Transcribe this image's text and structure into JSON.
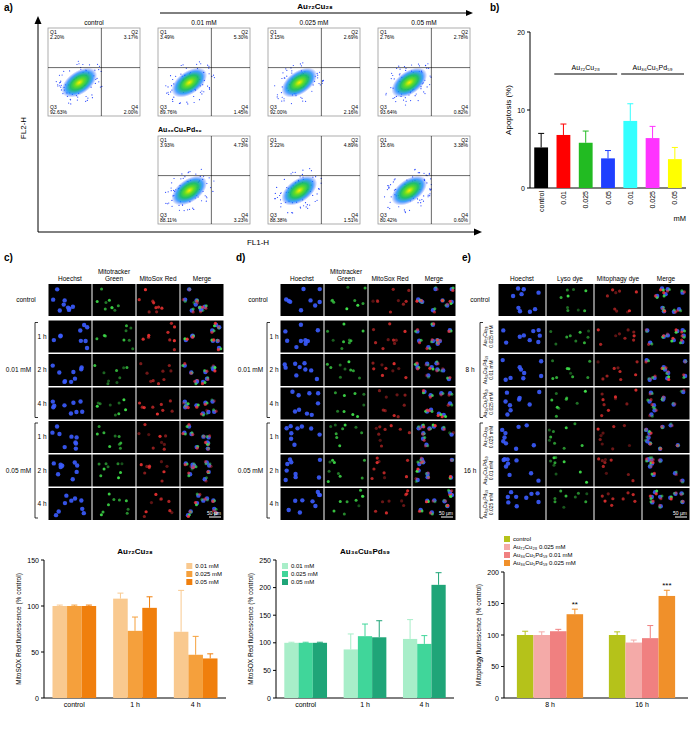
{
  "flow_cytometry": {
    "panel_label": "a)",
    "x_label": "FL1-H",
    "y_label": "FL2-H",
    "top_label": "Au₇₂Cu₂₈",
    "bottom_label": "Au₃₆Cu₅Pd₅₉",
    "column_titles": [
      "control",
      "0.01 mM",
      "0.025 mM",
      "0.05 mM"
    ],
    "top_row": [
      {
        "quadrants": [
          {
            "name": "Q1",
            "value": "2.20%"
          },
          {
            "name": "Q2",
            "value": "3.17%"
          },
          {
            "name": "Q3",
            "value": "92.63%"
          },
          {
            "name": "Q4",
            "value": "2.00%"
          }
        ]
      },
      {
        "quadrants": [
          {
            "name": "Q1",
            "value": "3.49%"
          },
          {
            "name": "Q2",
            "value": "5.30%"
          },
          {
            "name": "Q3",
            "value": "89.76%"
          },
          {
            "name": "Q4",
            "value": "1.45%"
          }
        ]
      },
      {
        "quadrants": [
          {
            "name": "Q1",
            "value": "3.15%"
          },
          {
            "name": "Q2",
            "value": "2.69%"
          },
          {
            "name": "Q3",
            "value": "92.00%"
          },
          {
            "name": "Q4",
            "value": "2.16%"
          }
        ]
      },
      {
        "quadrants": [
          {
            "name": "Q1",
            "value": "2.76%"
          },
          {
            "name": "Q2",
            "value": "2.78%"
          },
          {
            "name": "Q3",
            "value": "93.64%"
          },
          {
            "name": "Q4",
            "value": "0.82%"
          }
        ]
      }
    ],
    "bottom_row": [
      {
        "quadrants": [
          {
            "name": "Q1",
            "value": "3.93%"
          },
          {
            "name": "Q2",
            "value": "4.73%"
          },
          {
            "name": "Q3",
            "value": "88.11%"
          },
          {
            "name": "Q4",
            "value": "3.23%"
          }
        ]
      },
      {
        "quadrants": [
          {
            "name": "Q1",
            "value": "5.22%"
          },
          {
            "name": "Q2",
            "value": "4.89%"
          },
          {
            "name": "Q3",
            "value": "88.38%"
          },
          {
            "name": "Q4",
            "value": "1.51%"
          }
        ]
      },
      {
        "quadrants": [
          {
            "name": "Q1",
            "value": "15.6%"
          },
          {
            "name": "Q2",
            "value": "3.38%"
          },
          {
            "name": "Q3",
            "value": "80.42%"
          },
          {
            "name": "Q4",
            "value": "0.60%"
          }
        ]
      }
    ]
  },
  "chart_data": [
    {
      "panel_label": "b)",
      "type": "bar",
      "y_label": "Apoptosis (%)",
      "x_label": "mM",
      "categories": [
        "control",
        "0.01",
        "0.025",
        "0.05",
        "0.01",
        "0.025",
        "0.05"
      ],
      "category_groups": [
        null,
        "Au₇₂Cu₂₈",
        "Au₇₂Cu₂₈",
        "Au₇₂Cu₂₈",
        "Au₃₆Cu₅Pd₅₉",
        "Au₃₆Cu₅Pd₅₉",
        "Au₃₆Cu₅Pd₅₉"
      ],
      "values": [
        5.2,
        6.8,
        5.8,
        3.8,
        8.6,
        6.4,
        3.7
      ],
      "errors": [
        1.8,
        1.4,
        1.5,
        1.0,
        2.2,
        1.5,
        1.5
      ],
      "colors": [
        "#000000",
        "#ff0000",
        "#22bb22",
        "#1f3fff",
        "#33ffff",
        "#ff33ff",
        "#ffff00"
      ],
      "ylim": [
        0,
        20
      ],
      "yticks": [
        0,
        10,
        20
      ]
    },
    {
      "type": "bar",
      "title": "Au₇₂Cu₂₈",
      "y_label": "MitoSOX Red fluorescence (% control)",
      "categories": [
        "control",
        "1 h",
        "4 h"
      ],
      "series": [
        {
          "name": "0.01 mM",
          "color": "#f9c98f",
          "values": [
            100,
            108,
            72
          ],
          "errors": [
            1,
            6,
            45
          ]
        },
        {
          "name": "0.025 mM",
          "color": "#f5a03c",
          "values": [
            100,
            73,
            47
          ],
          "errors": [
            1,
            15,
            20
          ]
        },
        {
          "name": "0.05 mM",
          "color": "#f07f0d",
          "values": [
            100,
            98,
            43
          ],
          "errors": [
            1,
            12,
            5
          ]
        }
      ],
      "ylim": [
        0,
        150
      ],
      "yticks": [
        0,
        50,
        100,
        150
      ],
      "legend": "upper right"
    },
    {
      "type": "bar",
      "title": "Au₃₆Cu₅Pd₅₉",
      "y_label": "MitoSOX Red fluorescence (% control)",
      "categories": [
        "control",
        "1 h",
        "4 h"
      ],
      "series": [
        {
          "name": "0.01 mM",
          "color": "#a8eec9",
          "values": [
            100,
            88,
            107
          ],
          "errors": [
            1,
            28,
            35
          ]
        },
        {
          "name": "0.025 mM",
          "color": "#40d69a",
          "values": [
            100,
            112,
            98
          ],
          "errors": [
            1,
            22,
            15
          ]
        },
        {
          "name": "0.05 mM",
          "color": "#1fa578",
          "values": [
            100,
            110,
            205
          ],
          "errors": [
            1,
            30,
            22
          ]
        }
      ],
      "ylim": [
        0,
        250
      ],
      "yticks": [
        0,
        50,
        100,
        150,
        200,
        250
      ],
      "legend": "upper left"
    },
    {
      "type": "bar",
      "y_label": "Mitophagy fluorescence (% control)",
      "categories": [
        "8 h",
        "16 h"
      ],
      "series": [
        {
          "name": "control",
          "color": "#b5c21a",
          "values": [
            100,
            100
          ],
          "errors": [
            6,
            5
          ]
        },
        {
          "name": "Au₇₂Cu₂₈ 0.025 mM",
          "color": "#f4aaa8",
          "values": [
            100,
            88
          ],
          "errors": [
            5,
            4
          ]
        },
        {
          "name": "Au₃₆Cu₅Pd₅₉ 0.01 mM",
          "color": "#f08080",
          "values": [
            106,
            95
          ],
          "errors": [
            3,
            20
          ]
        },
        {
          "name": "Au₃₆Cu₅Pd₅₉ 0.025 mM",
          "color": "#f0902a",
          "values": [
            133,
            162
          ],
          "errors": [
            8,
            9
          ],
          "annotations": [
            "**",
            "***"
          ]
        }
      ],
      "ylim": [
        0,
        200
      ],
      "yticks": [
        0,
        50,
        100,
        150,
        200
      ],
      "legend": "top"
    }
  ],
  "microscopy": [
    {
      "panel_label": "c)",
      "columns": [
        "Hoechst",
        "Mitotracker Green",
        "MitoSox Red",
        "Merge"
      ],
      "rows": [
        {
          "group": null,
          "label": "control"
        },
        {
          "group": "0.01 mM",
          "label": "1 h"
        },
        {
          "group": "0.01 mM",
          "label": "2 h"
        },
        {
          "group": "0.01 mM",
          "label": "4 h"
        },
        {
          "group": "0.05 mM",
          "label": "1 h"
        },
        {
          "group": "0.05 mM",
          "label": "2 h"
        },
        {
          "group": "0.05 mM",
          "label": "4 h"
        }
      ],
      "scale_bar": "50 µm"
    },
    {
      "panel_label": "d)",
      "columns": [
        "Hoechst",
        "Mitotracker Green",
        "MitoSox Red",
        "Merge"
      ],
      "rows": [
        {
          "group": null,
          "label": "control"
        },
        {
          "group": "0.01 mM",
          "label": "1 h"
        },
        {
          "group": "0.01 mM",
          "label": "2 h"
        },
        {
          "group": "0.01 mM",
          "label": "4 h"
        },
        {
          "group": "0.05 mM",
          "label": "1 h"
        },
        {
          "group": "0.05 mM",
          "label": "2 h"
        },
        {
          "group": "0.05 mM",
          "label": "4 h"
        }
      ],
      "scale_bar": "50 µm"
    },
    {
      "panel_label": "e)",
      "columns": [
        "Hoechst",
        "Lyso dye",
        "Mitophagy dye",
        "Merge"
      ],
      "rows": [
        {
          "group": null,
          "label": "control"
        },
        {
          "group": "8 h",
          "label": "Au₇₂Cu₂₈ 0.025 mM"
        },
        {
          "group": "8 h",
          "label": "Au₃₆Cu₅Pd₅₉ 0.01 mM"
        },
        {
          "group": "8 h",
          "label": "Au₃₆Cu₅Pd₅₉ 0.025 mM"
        },
        {
          "group": "16 h",
          "label": "Au₇₂Cu₂₈ 0.025 mM"
        },
        {
          "group": "16 h",
          "label": "Au₃₆Cu₅Pd₅₉ 0.01 mM"
        },
        {
          "group": "16 h",
          "label": "Au₃₆Cu₅Pd₅₉ 0.025 mM"
        }
      ],
      "scale_bar": "50 µm"
    }
  ]
}
